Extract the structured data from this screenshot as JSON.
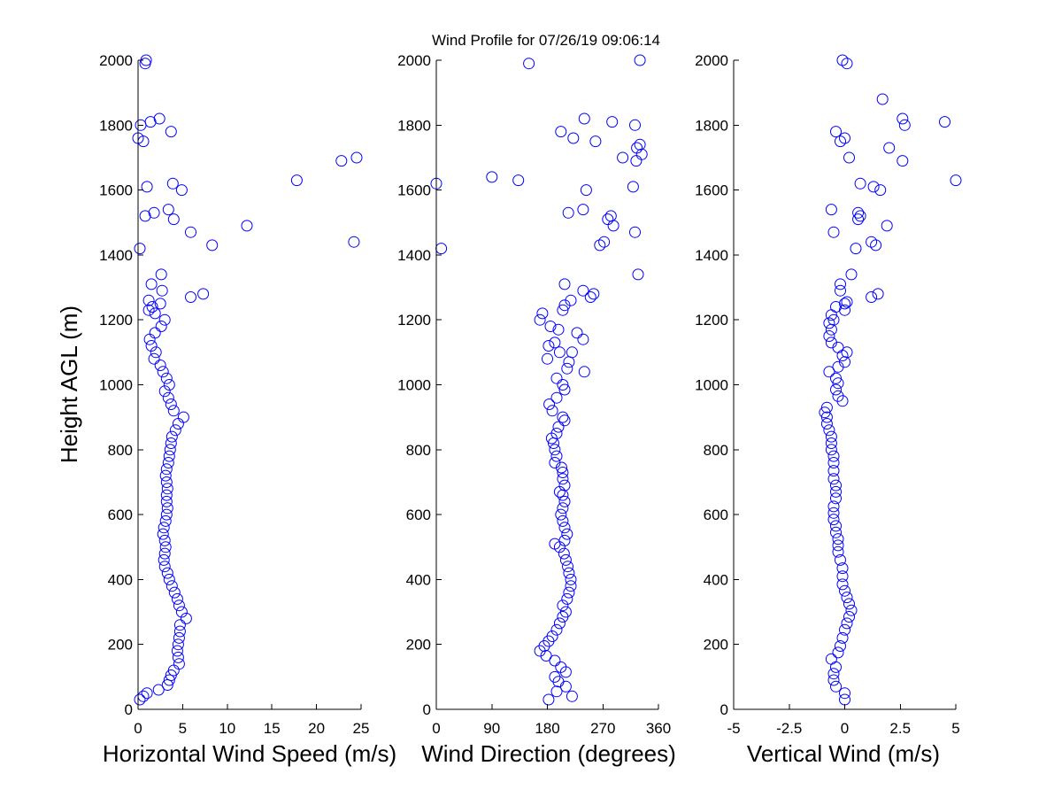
{
  "title": "Wind Profile for  07/26/19 09:06:14",
  "marker_color": "#0000ff",
  "chart_data": [
    {
      "type": "scatter",
      "xlabel": "Horizontal Wind Speed (m/s)",
      "ylabel": "Height AGL (m)",
      "xlim": [
        0,
        25
      ],
      "ylim": [
        0,
        2000
      ],
      "xticks": [
        "0",
        "5",
        "10",
        "15",
        "20",
        "25"
      ],
      "yticks": [
        "0",
        "200",
        "400",
        "600",
        "800",
        "1000",
        "1200",
        "1400",
        "1600",
        "1800",
        "2000"
      ],
      "grid": false,
      "points": [
        [
          0.2,
          30
        ],
        [
          0.6,
          40
        ],
        [
          1.0,
          50
        ],
        [
          2.3,
          60
        ],
        [
          3.3,
          75
        ],
        [
          3.5,
          90
        ],
        [
          3.7,
          105
        ],
        [
          4.0,
          120
        ],
        [
          4.6,
          140
        ],
        [
          4.5,
          160
        ],
        [
          4.4,
          180
        ],
        [
          4.5,
          200
        ],
        [
          4.6,
          220
        ],
        [
          4.7,
          240
        ],
        [
          4.7,
          260
        ],
        [
          5.4,
          280
        ],
        [
          4.9,
          300
        ],
        [
          4.6,
          320
        ],
        [
          4.4,
          340
        ],
        [
          4.1,
          360
        ],
        [
          3.8,
          380
        ],
        [
          3.5,
          400
        ],
        [
          3.3,
          420
        ],
        [
          3.0,
          440
        ],
        [
          2.9,
          460
        ],
        [
          3.0,
          480
        ],
        [
          3.1,
          500
        ],
        [
          3.0,
          520
        ],
        [
          2.8,
          540
        ],
        [
          2.9,
          560
        ],
        [
          3.1,
          580
        ],
        [
          3.2,
          600
        ],
        [
          3.3,
          620
        ],
        [
          3.2,
          640
        ],
        [
          3.2,
          660
        ],
        [
          3.3,
          680
        ],
        [
          3.2,
          700
        ],
        [
          3.1,
          720
        ],
        [
          3.2,
          740
        ],
        [
          3.4,
          760
        ],
        [
          3.5,
          780
        ],
        [
          3.6,
          800
        ],
        [
          3.7,
          820
        ],
        [
          3.8,
          840
        ],
        [
          4.2,
          860
        ],
        [
          4.5,
          880
        ],
        [
          5.1,
          900
        ],
        [
          4.0,
          920
        ],
        [
          3.7,
          940
        ],
        [
          3.4,
          960
        ],
        [
          3.0,
          980
        ],
        [
          3.5,
          1000
        ],
        [
          3.2,
          1020
        ],
        [
          2.8,
          1040
        ],
        [
          2.5,
          1060
        ],
        [
          1.8,
          1080
        ],
        [
          2.0,
          1100
        ],
        [
          1.5,
          1120
        ],
        [
          1.3,
          1140
        ],
        [
          1.9,
          1160
        ],
        [
          2.6,
          1180
        ],
        [
          3.0,
          1200
        ],
        [
          1.9,
          1220
        ],
        [
          1.2,
          1230
        ],
        [
          1.6,
          1240
        ],
        [
          2.5,
          1250
        ],
        [
          1.2,
          1260
        ],
        [
          5.9,
          1270
        ],
        [
          7.3,
          1280
        ],
        [
          2.7,
          1290
        ],
        [
          1.5,
          1310
        ],
        [
          2.6,
          1340
        ],
        [
          0.2,
          1420
        ],
        [
          8.3,
          1430
        ],
        [
          24.2,
          1440
        ],
        [
          5.9,
          1470
        ],
        [
          12.2,
          1490
        ],
        [
          4.0,
          1510
        ],
        [
          0.8,
          1520
        ],
        [
          1.8,
          1530
        ],
        [
          3.4,
          1540
        ],
        [
          4.9,
          1600
        ],
        [
          1.0,
          1610
        ],
        [
          3.9,
          1620
        ],
        [
          17.8,
          1630
        ],
        [
          22.8,
          1690
        ],
        [
          24.5,
          1700
        ],
        [
          0.6,
          1750
        ],
        [
          0.0,
          1760
        ],
        [
          3.7,
          1780
        ],
        [
          0.3,
          1800
        ],
        [
          1.4,
          1810
        ],
        [
          2.4,
          1820
        ],
        [
          0.8,
          1990
        ],
        [
          0.9,
          2000
        ]
      ]
    },
    {
      "type": "scatter",
      "xlabel": "Wind Direction (degrees)",
      "ylabel": "",
      "xlim": [
        0,
        360
      ],
      "ylim": [
        0,
        2000
      ],
      "xticks": [
        "0",
        "90",
        "180",
        "270",
        "360"
      ],
      "yticks": [
        "0",
        "200",
        "400",
        "600",
        "800",
        "1000",
        "1200",
        "1400",
        "1600",
        "1800",
        "2000"
      ],
      "grid": false,
      "points": [
        [
          182,
          30
        ],
        [
          220,
          40
        ],
        [
          195,
          55
        ],
        [
          210,
          70
        ],
        [
          198,
          85
        ],
        [
          192,
          100
        ],
        [
          210,
          115
        ],
        [
          202,
          130
        ],
        [
          192,
          150
        ],
        [
          178,
          165
        ],
        [
          168,
          180
        ],
        [
          175,
          195
        ],
        [
          182,
          210
        ],
        [
          188,
          225
        ],
        [
          195,
          245
        ],
        [
          200,
          265
        ],
        [
          205,
          285
        ],
        [
          210,
          300
        ],
        [
          205,
          320
        ],
        [
          212,
          340
        ],
        [
          215,
          360
        ],
        [
          218,
          380
        ],
        [
          218,
          400
        ],
        [
          215,
          420
        ],
        [
          213,
          440
        ],
        [
          210,
          460
        ],
        [
          207,
          480
        ],
        [
          200,
          500
        ],
        [
          192,
          510
        ],
        [
          208,
          520
        ],
        [
          212,
          540
        ],
        [
          208,
          560
        ],
        [
          205,
          580
        ],
        [
          202,
          600
        ],
        [
          205,
          620
        ],
        [
          208,
          640
        ],
        [
          205,
          660
        ],
        [
          200,
          670
        ],
        [
          208,
          690
        ],
        [
          205,
          710
        ],
        [
          205,
          730
        ],
        [
          203,
          745
        ],
        [
          192,
          760
        ],
        [
          195,
          780
        ],
        [
          192,
          800
        ],
        [
          190,
          820
        ],
        [
          187,
          835
        ],
        [
          195,
          850
        ],
        [
          198,
          870
        ],
        [
          208,
          890
        ],
        [
          205,
          900
        ],
        [
          188,
          920
        ],
        [
          183,
          940
        ],
        [
          195,
          960
        ],
        [
          208,
          985
        ],
        [
          205,
          1000
        ],
        [
          195,
          1020
        ],
        [
          240,
          1040
        ],
        [
          212,
          1050
        ],
        [
          215,
          1070
        ],
        [
          180,
          1080
        ],
        [
          200,
          1100
        ],
        [
          220,
          1100
        ],
        [
          182,
          1120
        ],
        [
          192,
          1130
        ],
        [
          238,
          1140
        ],
        [
          228,
          1160
        ],
        [
          198,
          1170
        ],
        [
          185,
          1180
        ],
        [
          168,
          1200
        ],
        [
          172,
          1220
        ],
        [
          205,
          1230
        ],
        [
          208,
          1245
        ],
        [
          218,
          1260
        ],
        [
          250,
          1270
        ],
        [
          255,
          1280
        ],
        [
          238,
          1290
        ],
        [
          208,
          1310
        ],
        [
          327,
          1340
        ],
        [
          265,
          1430
        ],
        [
          272,
          1440
        ],
        [
          322,
          1470
        ],
        [
          287,
          1490
        ],
        [
          278,
          1510
        ],
        [
          283,
          1520
        ],
        [
          214,
          1530
        ],
        [
          238,
          1540
        ],
        [
          243,
          1600
        ],
        [
          319,
          1610
        ],
        [
          0,
          1620
        ],
        [
          133,
          1630
        ],
        [
          90,
          1640
        ],
        [
          302,
          1700
        ],
        [
          333,
          1710
        ],
        [
          324,
          1690
        ],
        [
          325,
          1730
        ],
        [
          330,
          1740
        ],
        [
          258,
          1750
        ],
        [
          222,
          1760
        ],
        [
          202,
          1780
        ],
        [
          322,
          1800
        ],
        [
          285,
          1810
        ],
        [
          240,
          1820
        ],
        [
          150,
          1990
        ],
        [
          330,
          2000
        ],
        [
          8,
          1420
        ]
      ]
    },
    {
      "type": "scatter",
      "xlabel": "Vertical Wind (m/s)",
      "ylabel": "",
      "xlim": [
        -5,
        5
      ],
      "ylim": [
        0,
        2000
      ],
      "xticks": [
        "-5",
        "-2.5",
        "0",
        "2.5",
        "5"
      ],
      "yticks": [
        "0",
        "200",
        "400",
        "600",
        "800",
        "1000",
        "1200",
        "1400",
        "1600",
        "1800",
        "2000"
      ],
      "grid": false,
      "points": [
        [
          0.0,
          30
        ],
        [
          0.0,
          50
        ],
        [
          -0.4,
          70
        ],
        [
          -0.5,
          90
        ],
        [
          -0.5,
          110
        ],
        [
          -0.4,
          130
        ],
        [
          -0.6,
          155
        ],
        [
          -0.3,
          175
        ],
        [
          -0.2,
          195
        ],
        [
          -0.1,
          220
        ],
        [
          0.0,
          245
        ],
        [
          0.1,
          265
        ],
        [
          0.2,
          285
        ],
        [
          0.3,
          305
        ],
        [
          0.2,
          325
        ],
        [
          0.1,
          345
        ],
        [
          0.0,
          365
        ],
        [
          -0.1,
          385
        ],
        [
          -0.1,
          410
        ],
        [
          -0.1,
          435
        ],
        [
          -0.2,
          460
        ],
        [
          -0.3,
          485
        ],
        [
          -0.3,
          505
        ],
        [
          -0.3,
          525
        ],
        [
          -0.4,
          545
        ],
        [
          -0.4,
          565
        ],
        [
          -0.5,
          585
        ],
        [
          -0.5,
          605
        ],
        [
          -0.5,
          625
        ],
        [
          -0.4,
          650
        ],
        [
          -0.4,
          670
        ],
        [
          -0.4,
          690
        ],
        [
          -0.5,
          710
        ],
        [
          -0.5,
          735
        ],
        [
          -0.5,
          760
        ],
        [
          -0.5,
          780
        ],
        [
          -0.6,
          800
        ],
        [
          -0.6,
          820
        ],
        [
          -0.6,
          840
        ],
        [
          -0.7,
          860
        ],
        [
          -0.8,
          880
        ],
        [
          -0.8,
          900
        ],
        [
          -0.9,
          915
        ],
        [
          -0.8,
          930
        ],
        [
          -0.1,
          950
        ],
        [
          -0.3,
          965
        ],
        [
          -0.4,
          985
        ],
        [
          -0.3,
          1005
        ],
        [
          -0.4,
          1020
        ],
        [
          -0.7,
          1040
        ],
        [
          -0.3,
          1055
        ],
        [
          0.0,
          1070
        ],
        [
          -0.1,
          1090
        ],
        [
          0.1,
          1100
        ],
        [
          -0.3,
          1115
        ],
        [
          -0.6,
          1130
        ],
        [
          -0.7,
          1150
        ],
        [
          -0.6,
          1170
        ],
        [
          -0.7,
          1190
        ],
        [
          -0.5,
          1200
        ],
        [
          -0.6,
          1215
        ],
        [
          0.0,
          1230
        ],
        [
          -0.4,
          1240
        ],
        [
          0.0,
          1250
        ],
        [
          0.1,
          1255
        ],
        [
          1.2,
          1270
        ],
        [
          1.5,
          1280
        ],
        [
          -0.2,
          1290
        ],
        [
          -0.2,
          1310
        ],
        [
          0.3,
          1340
        ],
        [
          1.2,
          1440
        ],
        [
          1.4,
          1430
        ],
        [
          0.5,
          1420
        ],
        [
          -0.5,
          1470
        ],
        [
          1.9,
          1490
        ],
        [
          0.6,
          1510
        ],
        [
          0.7,
          1520
        ],
        [
          0.6,
          1530
        ],
        [
          -0.6,
          1540
        ],
        [
          1.6,
          1600
        ],
        [
          1.3,
          1610
        ],
        [
          0.7,
          1620
        ],
        [
          5.0,
          1630
        ],
        [
          2.6,
          1690
        ],
        [
          0.2,
          1700
        ],
        [
          2.0,
          1730
        ],
        [
          -0.2,
          1750
        ],
        [
          0.0,
          1760
        ],
        [
          -0.4,
          1780
        ],
        [
          2.7,
          1800
        ],
        [
          4.5,
          1810
        ],
        [
          2.6,
          1820
        ],
        [
          1.7,
          1880
        ],
        [
          -0.1,
          2000
        ],
        [
          0.1,
          1990
        ]
      ]
    }
  ]
}
